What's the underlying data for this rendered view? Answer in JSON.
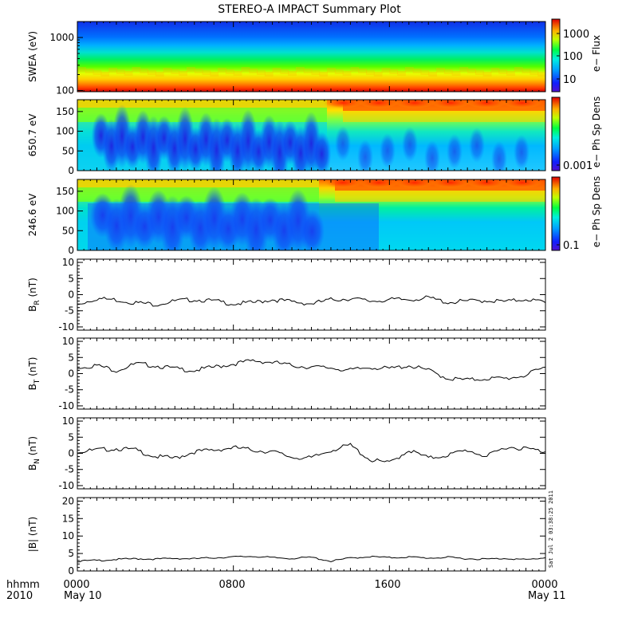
{
  "title": "STEREO-A IMPACT Summary Plot",
  "time_axis": {
    "row1_labels": [
      "hhmm",
      "0000",
      "0800",
      "1600",
      "0000"
    ],
    "row2_labels": [
      "2010",
      "May 10",
      "May 11"
    ]
  },
  "timestamp": "Sat Jul  2 03:38:25 2011",
  "chart_data": [
    {
      "type": "heatmap",
      "ylabel": "SWEA (eV)",
      "y_scale": "log",
      "ylim": [
        95,
        2000
      ],
      "yticks": [
        "1000",
        "100"
      ],
      "colorbar": {
        "label": "e− Flux",
        "scale": "log",
        "ticks": [
          "1000",
          "100",
          "10"
        ]
      }
    },
    {
      "type": "heatmap",
      "ylabel": "650.7 eV",
      "ylim": [
        0,
        180
      ],
      "yticks": [
        "150",
        "100",
        "50",
        "0"
      ],
      "colorbar": {
        "label": "e− Ph Sp Dens",
        "scale": "log",
        "ticks": [
          "0.001"
        ]
      }
    },
    {
      "type": "heatmap",
      "ylabel": "246.6 eV",
      "ylim": [
        0,
        180
      ],
      "yticks": [
        "150",
        "100",
        "50",
        "0"
      ],
      "colorbar": {
        "label": "e− Ph Sp Dens",
        "scale": "log",
        "ticks": [
          "0.1"
        ]
      }
    },
    {
      "type": "line",
      "ylabel": "B_R (nT)",
      "ylabel_main": "B",
      "ylabel_sub": "R",
      "ylabel_unit": "(nT)",
      "ylim": [
        -11,
        11
      ],
      "yticks": [
        "10",
        "5",
        "0",
        "-5",
        "-10"
      ],
      "x": [
        0,
        1,
        2,
        3,
        4,
        5,
        6,
        7,
        8,
        9,
        10,
        11,
        12,
        13,
        14,
        15,
        16,
        17,
        18,
        19,
        20,
        21,
        22,
        23,
        24
      ],
      "y": [
        -3,
        -1.2,
        -1.6,
        -2.5,
        -3,
        -2,
        -1.5,
        -2,
        -2.8,
        -2.5,
        -1.5,
        -2.2,
        -2.8,
        -1.6,
        -1.2,
        -2,
        -1.6,
        -1.5,
        -1,
        -2.4,
        -2,
        -1.8,
        -2.2,
        -1.3,
        -2.5
      ]
    },
    {
      "type": "line",
      "ylabel": "B_T (nT)",
      "ylabel_main": "B",
      "ylabel_sub": "T",
      "ylabel_unit": "(nT)",
      "ylim": [
        -11,
        11
      ],
      "yticks": [
        "10",
        "5",
        "0",
        "-5",
        "-10"
      ],
      "x": [
        0,
        1,
        2,
        3,
        4,
        5,
        6,
        7,
        8,
        9,
        10,
        11,
        12,
        13,
        14,
        15,
        16,
        17,
        18,
        19,
        20,
        21,
        22,
        23,
        24
      ],
      "y": [
        2,
        2.5,
        1,
        3,
        2.5,
        1.5,
        1,
        2,
        3,
        4,
        3.5,
        2.5,
        2,
        1.8,
        1,
        2,
        1.5,
        2.5,
        1,
        -1.5,
        -2,
        -1.5,
        -1.5,
        -0.5,
        2
      ]
    },
    {
      "type": "line",
      "ylabel": "B_N (nT)",
      "ylabel_main": "B",
      "ylabel_sub": "N",
      "ylabel_unit": "(nT)",
      "ylim": [
        -11,
        11
      ],
      "yticks": [
        "10",
        "5",
        "0",
        "-5",
        "-10"
      ],
      "x": [
        0,
        1,
        2,
        3,
        4,
        5,
        6,
        7,
        8,
        9,
        10,
        11,
        12,
        13,
        14,
        15,
        16,
        17,
        18,
        19,
        20,
        21,
        22,
        23,
        24
      ],
      "y": [
        0.5,
        1,
        1.5,
        1,
        -1,
        -1.5,
        0.5,
        1,
        1.8,
        1,
        0.5,
        -1.2,
        -1.5,
        1,
        2.5,
        -2,
        -3,
        1,
        -1.5,
        -0.5,
        1,
        -1,
        2,
        1.5,
        0.5
      ]
    },
    {
      "type": "line",
      "ylabel": "|B| (nT)",
      "ylim": [
        0,
        21
      ],
      "yticks": [
        "20",
        "15",
        "10",
        "5",
        "0"
      ],
      "x": [
        0,
        1,
        2,
        3,
        4,
        5,
        6,
        7,
        8,
        9,
        10,
        11,
        12,
        13,
        14,
        15,
        16,
        17,
        18,
        19,
        20,
        21,
        22,
        23,
        24
      ],
      "y": [
        2.8,
        3,
        3.3,
        3.5,
        3.4,
        3.6,
        3.5,
        3.8,
        4,
        4.2,
        3.8,
        3.6,
        3.9,
        2.8,
        3.7,
        4.1,
        3.8,
        4,
        3.7,
        3.9,
        3.5,
        3.4,
        3.6,
        3.2,
        3.8
      ]
    }
  ]
}
